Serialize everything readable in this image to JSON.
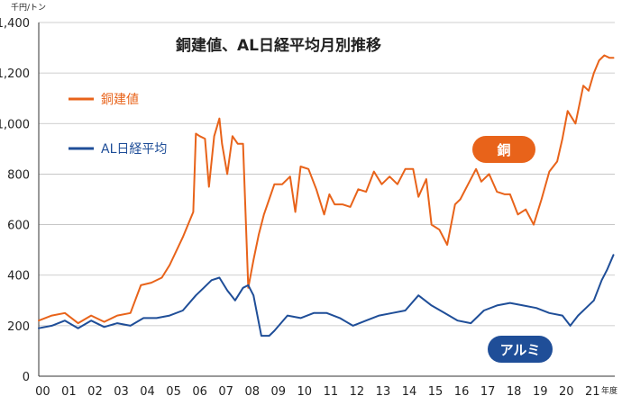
{
  "chart_data": {
    "type": "line",
    "title": "銅建値、AL日経平均月別推移",
    "ylabel": "千円/トン",
    "xlabel": "年度",
    "ylim": [
      0,
      1400
    ],
    "yticks": [
      0,
      200,
      400,
      600,
      800,
      1000,
      1200,
      1400
    ],
    "ytick_labels": [
      "0",
      "200",
      "400",
      "600",
      "800",
      "1,000",
      "1,200",
      "1,400"
    ],
    "xlim": [
      2000.0,
      2022.0
    ],
    "xtick_labels": [
      "00",
      "01",
      "02",
      "03",
      "04",
      "05",
      "06",
      "07",
      "08",
      "09",
      "10",
      "11",
      "12",
      "13",
      "14",
      "15",
      "16",
      "17",
      "18",
      "19",
      "20",
      "21"
    ],
    "grid": true,
    "legend_position": "top-left",
    "series": [
      {
        "name": "銅建値",
        "color": "#e8631a",
        "badge": "銅",
        "x": [
          2000.0,
          2000.5,
          2001.0,
          2001.5,
          2002.0,
          2002.5,
          2003.0,
          2003.5,
          2003.9,
          2004.3,
          2004.7,
          2005.0,
          2005.5,
          2005.9,
          2006.0,
          2006.15,
          2006.35,
          2006.5,
          2006.7,
          2006.9,
          2007.0,
          2007.2,
          2007.4,
          2007.6,
          2007.8,
          2008.0,
          2008.2,
          2008.4,
          2008.6,
          2008.8,
          2009.0,
          2009.3,
          2009.6,
          2009.8,
          2010.0,
          2010.3,
          2010.6,
          2010.9,
          2011.1,
          2011.3,
          2011.6,
          2011.9,
          2012.2,
          2012.5,
          2012.8,
          2013.1,
          2013.4,
          2013.7,
          2014.0,
          2014.3,
          2014.5,
          2014.8,
          2015.0,
          2015.3,
          2015.6,
          2015.9,
          2016.1,
          2016.4,
          2016.7,
          2016.9,
          2017.2,
          2017.5,
          2017.8,
          2018.0,
          2018.3,
          2018.6,
          2018.9,
          2019.2,
          2019.5,
          2019.8,
          2020.0,
          2020.2,
          2020.5,
          2020.8,
          2021.0,
          2021.2,
          2021.4,
          2021.6,
          2021.8,
          2021.95
        ],
        "y": [
          220,
          240,
          250,
          210,
          240,
          215,
          240,
          250,
          360,
          370,
          390,
          440,
          550,
          650,
          960,
          950,
          940,
          750,
          950,
          1020,
          920,
          800,
          950,
          920,
          920,
          350,
          460,
          560,
          640,
          700,
          760,
          760,
          790,
          650,
          830,
          820,
          740,
          640,
          720,
          680,
          680,
          670,
          740,
          730,
          810,
          760,
          790,
          760,
          820,
          820,
          710,
          780,
          600,
          580,
          520,
          680,
          700,
          760,
          820,
          770,
          800,
          730,
          720,
          720,
          640,
          660,
          600,
          700,
          810,
          850,
          940,
          1050,
          1000,
          1150,
          1130,
          1200,
          1250,
          1270,
          1260,
          1260
        ]
      },
      {
        "name": "AL日経平均",
        "color": "#1f4e98",
        "badge": "アルミ",
        "x": [
          2000.0,
          2000.5,
          2001.0,
          2001.5,
          2002.0,
          2002.5,
          2003.0,
          2003.5,
          2004.0,
          2004.5,
          2005.0,
          2005.5,
          2006.0,
          2006.3,
          2006.6,
          2006.9,
          2007.2,
          2007.5,
          2007.8,
          2008.0,
          2008.2,
          2008.5,
          2008.8,
          2009.0,
          2009.5,
          2010.0,
          2010.5,
          2011.0,
          2011.5,
          2012.0,
          2012.5,
          2013.0,
          2013.5,
          2014.0,
          2014.5,
          2015.0,
          2015.5,
          2016.0,
          2016.5,
          2017.0,
          2017.5,
          2018.0,
          2018.5,
          2019.0,
          2019.5,
          2020.0,
          2020.3,
          2020.6,
          2020.9,
          2021.2,
          2021.5,
          2021.7,
          2021.95
        ],
        "y": [
          190,
          200,
          220,
          190,
          220,
          195,
          210,
          200,
          230,
          230,
          240,
          260,
          320,
          350,
          380,
          390,
          340,
          300,
          350,
          360,
          320,
          160,
          160,
          180,
          240,
          230,
          250,
          250,
          230,
          200,
          220,
          240,
          250,
          260,
          320,
          280,
          250,
          220,
          210,
          260,
          280,
          290,
          280,
          270,
          250,
          240,
          200,
          240,
          270,
          300,
          380,
          420,
          480
        ]
      }
    ]
  }
}
